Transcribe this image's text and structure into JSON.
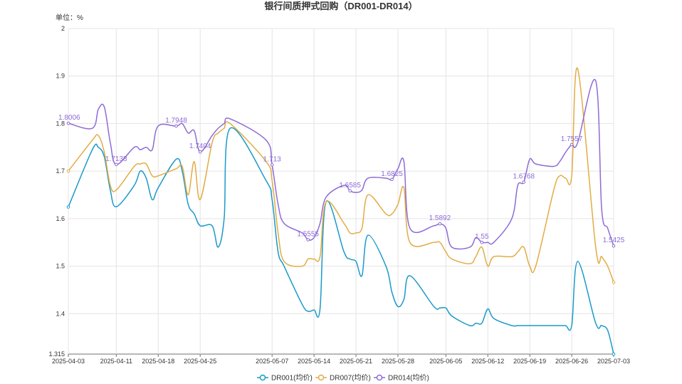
{
  "chart_data": {
    "type": "line",
    "title": "银行间质押式回购（DR001-DR014）",
    "unit_label": "单位：%",
    "ylim": [
      1.315,
      2
    ],
    "y_ticks": [
      {
        "v": 1.315,
        "t": "1.315"
      },
      {
        "v": 1.4,
        "t": "1.4"
      },
      {
        "v": 1.5,
        "t": "1.5"
      },
      {
        "v": 1.6,
        "t": "1.6"
      },
      {
        "v": 1.7,
        "t": "1.7"
      },
      {
        "v": 1.8,
        "t": "1.8"
      },
      {
        "v": 1.9,
        "t": "1.9"
      },
      {
        "v": 2,
        "t": "2"
      }
    ],
    "x_ticks": [
      "2025-04-03",
      "2025-04-11",
      "2025-04-18",
      "2025-04-25",
      "2025-05-07",
      "2025-05-14",
      "2025-05-21",
      "2025-05-28",
      "2025-06-05",
      "2025-06-12",
      "2025-06-19",
      "2025-06-26",
      "2025-07-03"
    ],
    "grid": true,
    "legend_position": "bottom",
    "x": [
      "2025-04-03",
      "2025-04-07",
      "2025-04-08",
      "2025-04-09",
      "2025-04-10",
      "2025-04-11",
      "2025-04-14",
      "2025-04-15",
      "2025-04-16",
      "2025-04-17",
      "2025-04-18",
      "2025-04-21",
      "2025-04-22",
      "2025-04-23",
      "2025-04-24",
      "2025-04-25",
      "2025-04-27",
      "2025-04-28",
      "2025-04-29",
      "2025-04-30",
      "2025-05-06",
      "2025-05-07",
      "2025-05-08",
      "2025-05-09",
      "2025-05-12",
      "2025-05-13",
      "2025-05-14",
      "2025-05-15",
      "2025-05-16",
      "2025-05-19",
      "2025-05-20",
      "2025-05-21",
      "2025-05-22",
      "2025-05-23",
      "2025-05-26",
      "2025-05-27",
      "2025-05-28",
      "2025-05-29",
      "2025-05-30",
      "2025-06-03",
      "2025-06-04",
      "2025-06-05",
      "2025-06-06",
      "2025-06-09",
      "2025-06-10",
      "2025-06-11",
      "2025-06-12",
      "2025-06-13",
      "2025-06-16",
      "2025-06-17",
      "2025-06-18",
      "2025-06-19",
      "2025-06-20",
      "2025-06-23",
      "2025-06-24",
      "2025-06-25",
      "2025-06-26",
      "2025-06-27",
      "2025-06-30",
      "2025-07-01",
      "2025-07-02",
      "2025-07-03"
    ],
    "series": [
      {
        "name": "DR001(均价)",
        "color": "#1a9ac9",
        "values": [
          1.6245,
          1.745,
          1.75,
          1.73,
          1.66,
          1.625,
          1.67,
          1.7,
          1.685,
          1.64,
          1.665,
          1.725,
          1.7,
          1.63,
          1.61,
          1.585,
          1.585,
          1.54,
          1.6,
          1.79,
          1.68,
          1.64,
          1.53,
          1.5,
          1.42,
          1.405,
          1.408,
          1.41,
          1.635,
          1.53,
          1.515,
          1.51,
          1.48,
          1.565,
          1.5,
          1.445,
          1.415,
          1.43,
          1.48,
          1.415,
          1.412,
          1.412,
          1.395,
          1.375,
          1.38,
          1.38,
          1.41,
          1.39,
          1.375,
          1.375,
          1.375,
          1.375,
          1.375,
          1.375,
          1.375,
          1.375,
          1.375,
          1.51,
          1.38,
          1.375,
          1.365,
          1.315
        ],
        "labels": []
      },
      {
        "name": "DR007(均价)",
        "color": "#e2ac44",
        "values": [
          1.7,
          1.765,
          1.775,
          1.74,
          1.67,
          1.66,
          1.71,
          1.715,
          1.715,
          1.69,
          1.69,
          1.705,
          1.71,
          1.65,
          1.72,
          1.64,
          1.76,
          1.78,
          1.79,
          1.8,
          1.72,
          1.68,
          1.57,
          1.51,
          1.5,
          1.515,
          1.515,
          1.52,
          1.635,
          1.59,
          1.57,
          1.57,
          1.58,
          1.65,
          1.61,
          1.61,
          1.63,
          1.665,
          1.55,
          1.55,
          1.55,
          1.53,
          1.515,
          1.505,
          1.52,
          1.54,
          1.5,
          1.52,
          1.52,
          1.53,
          1.54,
          1.5,
          1.5,
          1.66,
          1.69,
          1.685,
          1.69,
          1.915,
          1.54,
          1.52,
          1.5,
          1.466
        ],
        "labels": []
      },
      {
        "name": "DR014(均价)",
        "color": "#8e6bd6",
        "values": [
          1.8006,
          1.79,
          1.83,
          1.835,
          1.76,
          1.7138,
          1.75,
          1.745,
          1.75,
          1.745,
          1.795,
          1.7948,
          1.8,
          1.78,
          1.785,
          1.7404,
          1.775,
          1.79,
          1.8,
          1.81,
          1.765,
          1.713,
          1.63,
          1.59,
          1.57,
          1.5555,
          1.56,
          1.59,
          1.645,
          1.67,
          1.6585,
          1.655,
          1.66,
          1.685,
          1.685,
          1.6825,
          1.705,
          1.72,
          1.58,
          1.585,
          1.5892,
          1.58,
          1.54,
          1.54,
          1.56,
          1.55,
          1.55,
          1.55,
          1.6,
          1.67,
          1.6768,
          1.725,
          1.715,
          1.71,
          1.72,
          1.74,
          1.7557,
          1.76,
          1.89,
          1.62,
          1.58,
          1.5425
        ],
        "labels": [
          {
            "i": 0,
            "text": "1.8006"
          },
          {
            "i": 5,
            "text": "1.7138"
          },
          {
            "i": 11,
            "text": "1.7948"
          },
          {
            "i": 15,
            "text": "1.7404"
          },
          {
            "i": 21,
            "text": "1.713"
          },
          {
            "i": 25,
            "text": "1.5555"
          },
          {
            "i": 30,
            "text": "1.6585"
          },
          {
            "i": 35,
            "text": "1.6825"
          },
          {
            "i": 40,
            "text": "1.5892"
          },
          {
            "i": 45,
            "text": "1.55"
          },
          {
            "i": 50,
            "text": "1.6768"
          },
          {
            "i": 56,
            "text": "1.7557"
          },
          {
            "i": 61,
            "text": "1.5425"
          }
        ]
      }
    ]
  }
}
